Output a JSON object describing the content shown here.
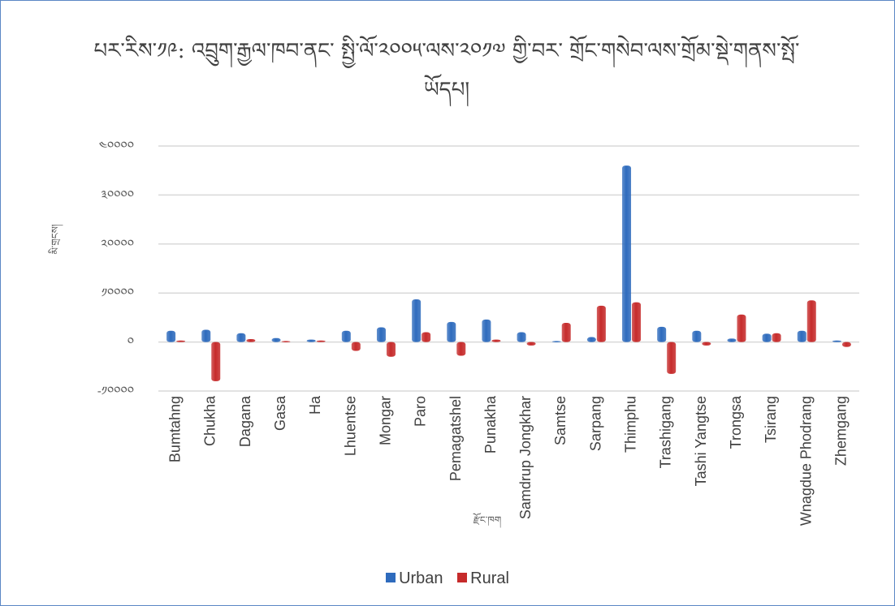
{
  "chart_data": {
    "type": "bar",
    "title_line1": "པར་རིས་༡༩: འབྲུག་རྒྱལ་ཁབ་ནང་ སྤྱི་ལོ་༢༠༠༥་ལས་༢༠༡༧ གྱི་བར་ གྲོང་གསེབ་ལས་གྲོམ་སྡེ་གནས་སྤོ་",
    "title_line2": "ཡོདཔ།",
    "xlabel": "རྫོང་ཁག",
    "ylabel": "མི་གྲངས།",
    "categories": [
      "Bumtahng",
      "Chukha",
      "Dagana",
      "Gasa",
      "Ha",
      "Lhuentse",
      "Mongar",
      "Paro",
      "Pemagatshel",
      "Punakha",
      "Samdrup Jongkhar",
      "Samtse",
      "Sarpang",
      "Thimphu",
      "Trashigang",
      "Tashi Yangtse",
      "Trongsa",
      "Tsirang",
      "Wnagdue Phodrang",
      "Zhemgang"
    ],
    "series": [
      {
        "name": "Urban",
        "color": "#2e6bbd",
        "values": [
          2300,
          2500,
          1800,
          800,
          500,
          2300,
          3000,
          8700,
          4100,
          4600,
          2000,
          200,
          1000,
          36000,
          3100,
          2300,
          700,
          1700,
          2300,
          300
        ]
      },
      {
        "name": "Rural",
        "color": "#c62b2b",
        "values": [
          300,
          -8000,
          600,
          200,
          300,
          -1800,
          -3000,
          2000,
          -2800,
          500,
          -700,
          3900,
          7400,
          8100,
          -6500,
          -700,
          5600,
          1800,
          8500,
          -1000
        ]
      }
    ],
    "yticks": [
      -10000,
      0,
      10000,
      20000,
      30000,
      40000
    ],
    "ytick_labels": [
      "-༡༠༠༠༠",
      "༠",
      "༡༠༠༠༠",
      "༢༠༠༠༠",
      "༣༠༠༠༠",
      "༤༠༠༠༠"
    ],
    "ylim": [
      -10000,
      40000
    ],
    "grid": true,
    "legend_position": "bottom"
  }
}
